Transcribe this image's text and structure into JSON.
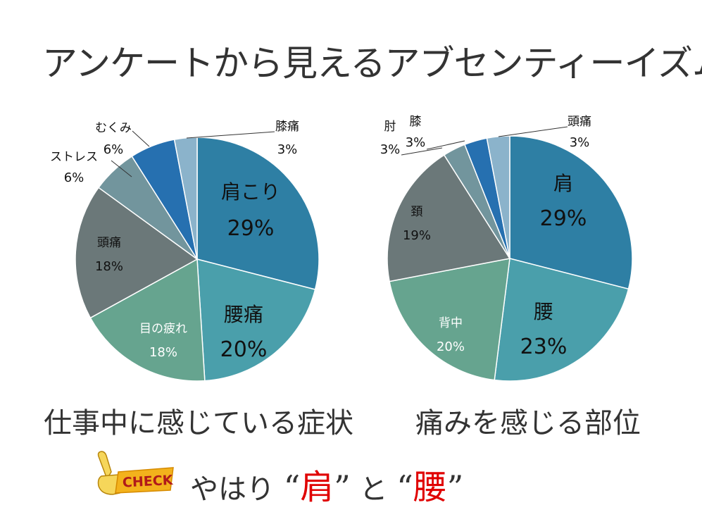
{
  "title": "アンケートから見えるアブセンティーイズム",
  "captions": [
    "仕事中に感じている症状",
    "痛みを感じる部位"
  ],
  "conclusion": {
    "badge_text": "CHECK",
    "prefix": "やはり",
    "quote_open": "“",
    "quote_close": "”",
    "word1": "肩",
    "connector": "と",
    "word2": "腰",
    "highlight_color": "#e00000"
  },
  "chart_data": [
    {
      "type": "pie",
      "title": "",
      "slices": [
        {
          "label": "肩こり",
          "value": 29,
          "pct_label": "29%",
          "color": "#2e7fa4"
        },
        {
          "label": "腰痛",
          "value": 20,
          "pct_label": "20%",
          "color": "#4a9fab"
        },
        {
          "label": "目の疲れ",
          "value": 18,
          "pct_label": "18%",
          "color": "#66a48f"
        },
        {
          "label": "頭痛",
          "value": 18,
          "pct_label": "18%",
          "color": "#6b7879"
        },
        {
          "label": "ストレス",
          "value": 6,
          "pct_label": "6%",
          "color": "#72959d"
        },
        {
          "label": "むくみ",
          "value": 6,
          "pct_label": "6%",
          "color": "#2670b0"
        },
        {
          "label": "膝痛",
          "value": 3,
          "pct_label": "3%",
          "color": "#8bb3cb"
        }
      ]
    },
    {
      "type": "pie",
      "title": "",
      "slices": [
        {
          "label": "肩",
          "value": 29,
          "pct_label": "29%",
          "color": "#2e7fa4"
        },
        {
          "label": "腰",
          "value": 23,
          "pct_label": "23%",
          "color": "#4a9fab"
        },
        {
          "label": "背中",
          "value": 20,
          "pct_label": "20%",
          "color": "#66a48f"
        },
        {
          "label": "頚",
          "value": 19,
          "pct_label": "19%",
          "color": "#6b7879"
        },
        {
          "label": "肘",
          "value": 3,
          "pct_label": "3%",
          "color": "#72959d"
        },
        {
          "label": "膝",
          "value": 3,
          "pct_label": "3%",
          "color": "#2670b0"
        },
        {
          "label": "頭痛",
          "value": 3,
          "pct_label": "3%",
          "color": "#8bb3cb"
        }
      ]
    }
  ]
}
